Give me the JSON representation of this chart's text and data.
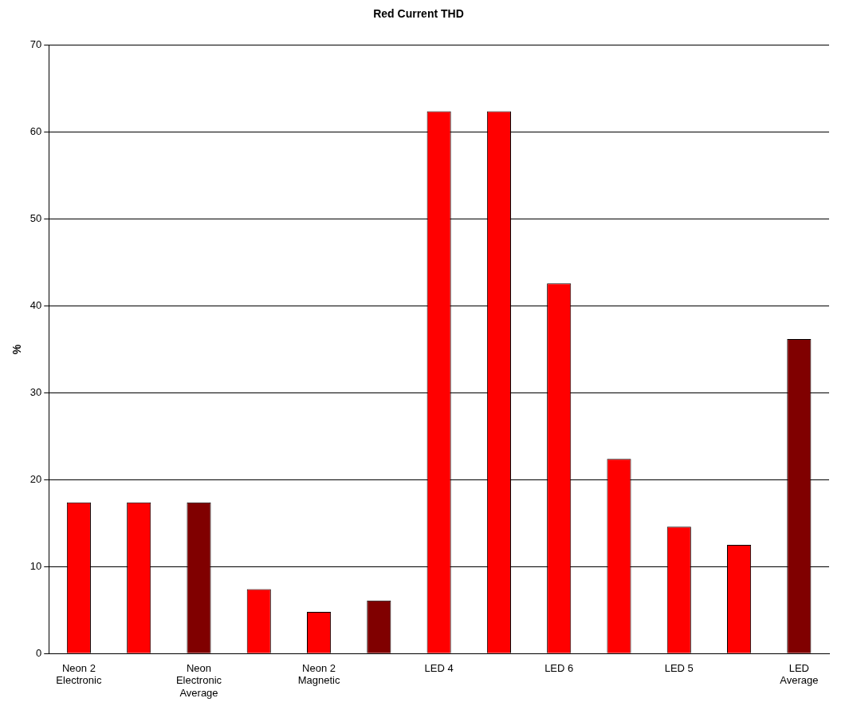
{
  "chart_data": {
    "type": "bar",
    "title": "Red Current THD",
    "ylabel": "%",
    "categories": [
      "Neon 2 Electronic",
      null,
      "Neon Electronic Average",
      null,
      "Neon 2 Magnetic",
      null,
      "LED 4",
      null,
      "LED 6",
      null,
      "LED 5",
      null,
      "LED Average"
    ],
    "values": [
      17.4,
      17.4,
      17.4,
      7.4,
      4.8,
      6.1,
      62.4,
      62.4,
      42.6,
      22.4,
      14.6,
      12.5,
      36.2
    ],
    "colors": [
      "#ff0000",
      "#ff0000",
      "#800000",
      "#ff0000",
      "#ff0000",
      "#800000",
      "#ff0000",
      "#ff0000",
      "#ff0000",
      "#ff0000",
      "#ff0000",
      "#ff0000",
      "#800000"
    ],
    "ylim": [
      0,
      70
    ],
    "yticks": [
      0,
      10,
      20,
      30,
      40,
      50,
      60,
      70
    ],
    "grid": "y",
    "legend": false
  }
}
